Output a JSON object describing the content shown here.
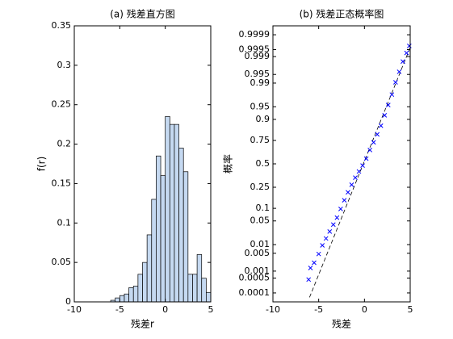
{
  "chart_data": [
    {
      "type": "histogram",
      "title": "(a) 残差直方图",
      "xlabel": "残差r",
      "ylabel": "f(r)",
      "bins": [
        -6,
        -5.5,
        -5,
        -4.5,
        -4,
        -3.5,
        -3,
        -2.5,
        -2,
        -1.5,
        -1,
        -0.5,
        0,
        0.5,
        1,
        1.5,
        2,
        2.5,
        3,
        3.5,
        4,
        4.5,
        5
      ],
      "values": [
        0.002,
        0.005,
        0.008,
        0.01,
        0.018,
        0.02,
        0.035,
        0.05,
        0.085,
        0.13,
        0.185,
        0.16,
        0.235,
        0.225,
        0.225,
        0.195,
        0.165,
        0.035,
        0.035,
        0.06,
        0.03,
        0.012
      ],
      "color": "#c5d9f1",
      "xlim": [
        -10,
        5
      ],
      "xticks": [
        -10,
        -5,
        0,
        5
      ],
      "ylim": [
        0,
        0.35
      ],
      "yticks": [
        0,
        0.05,
        0.1,
        0.15,
        0.2,
        0.25,
        0.3,
        0.35
      ]
    },
    {
      "type": "probability",
      "title": "(b) 残差正态概率图",
      "xlabel": "残差",
      "ylabel": "概率",
      "x": [
        -6.1,
        -5.9,
        -5.5,
        -5.0,
        -4.6,
        -4.2,
        -3.8,
        -3.4,
        -3.0,
        -2.6,
        -2.2,
        -1.8,
        -1.4,
        -1.0,
        -0.6,
        -0.2,
        0.2,
        0.6,
        1.0,
        1.4,
        1.8,
        2.2,
        2.6,
        3.0,
        3.4,
        3.8,
        4.2,
        4.6,
        4.9
      ],
      "values": [
        0.00043,
        0.00135,
        0.0022,
        0.0047,
        0.0094,
        0.0158,
        0.0256,
        0.04,
        0.0606,
        0.0968,
        0.147,
        0.206,
        0.274,
        0.345,
        0.413,
        0.48,
        0.56,
        0.655,
        0.732,
        0.802,
        0.864,
        0.919,
        0.955,
        0.977,
        0.9906,
        0.996,
        0.9984,
        0.9993,
        0.99966
      ],
      "color": "#0000ff",
      "reference_line": {
        "x": [
          -6,
          5
        ],
        "values": [
          6e-05,
          0.9996
        ]
      },
      "y_scale": "normal",
      "xlim": [
        -10,
        5
      ],
      "xticks": [
        -10,
        -5,
        0,
        5
      ],
      "ylim": [
        3.5e-05,
        0.999965
      ],
      "yticks": [
        0.0001,
        0.0005,
        0.001,
        0.005,
        0.01,
        0.05,
        0.1,
        0.25,
        0.5,
        0.75,
        0.9,
        0.95,
        0.99,
        0.995,
        0.999,
        0.9995,
        0.9999
      ]
    }
  ]
}
